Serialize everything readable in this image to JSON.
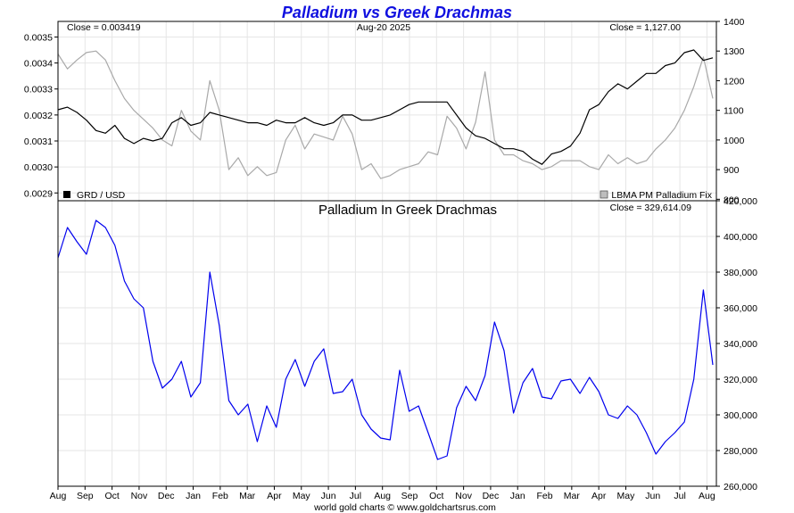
{
  "title": "Palladium vs Greek Drachmas",
  "footer": "world gold charts © www.goldchartsrus.com",
  "colors": {
    "title": "#1010e0",
    "grd": "#000000",
    "palladium_fix": "#a9a9a9",
    "ratio": "#0000ee"
  },
  "chart_data": [
    {
      "type": "line",
      "panel": "top",
      "annotations": {
        "close_left": "Close = 0.003419",
        "date": "Aug-20  2025",
        "close_right": "Close = 1,127.00"
      },
      "left_axis": {
        "ticks": [
          "0.0035",
          "0.0034",
          "0.0033",
          "0.0032",
          "0.0031",
          "0.0030",
          "0.0029"
        ],
        "ylim": [
          0.00287,
          0.00356
        ]
      },
      "right_axis": {
        "ticks": [
          "1400",
          "1300",
          "1200",
          "1100",
          "1000",
          "900",
          "800"
        ],
        "ylim": [
          795,
          1400
        ]
      },
      "legend": {
        "placement": "bottom",
        "left_label": "GRD / USD",
        "right_label": "LBMA PM Palladium Fix"
      },
      "grid": true,
      "series": [
        {
          "name": "GRD / USD",
          "axis": "left",
          "color": "#000000",
          "values": [
            0.00322,
            0.00323,
            0.00321,
            0.00318,
            0.00314,
            0.00313,
            0.00316,
            0.00311,
            0.00309,
            0.00311,
            0.0031,
            0.00311,
            0.00317,
            0.00319,
            0.00316,
            0.00317,
            0.00321,
            0.0032,
            0.00319,
            0.00318,
            0.00317,
            0.00317,
            0.00316,
            0.00318,
            0.00317,
            0.00317,
            0.00319,
            0.00317,
            0.00316,
            0.00317,
            0.0032,
            0.0032,
            0.00318,
            0.00318,
            0.00319,
            0.0032,
            0.00322,
            0.00324,
            0.00325,
            0.00325,
            0.00325,
            0.00325,
            0.0032,
            0.00315,
            0.00312,
            0.00311,
            0.00309,
            0.00307,
            0.00307,
            0.00306,
            0.00303,
            0.00301,
            0.00305,
            0.00306,
            0.00308,
            0.00313,
            0.00322,
            0.00324,
            0.00329,
            0.00332,
            0.0033,
            0.00333,
            0.00336,
            0.00336,
            0.00339,
            0.0034,
            0.00344,
            0.00345,
            0.00341,
            0.00342
          ]
        },
        {
          "name": "LBMA PM Palladium Fix",
          "axis": "right",
          "color": "#a9a9a9",
          "values": [
            1290,
            1240,
            1270,
            1295,
            1300,
            1270,
            1200,
            1140,
            1100,
            1070,
            1040,
            1000,
            980,
            1100,
            1030,
            1000,
            1200,
            1100,
            900,
            940,
            880,
            910,
            880,
            890,
            1000,
            1050,
            970,
            1020,
            1010,
            1000,
            1080,
            1020,
            900,
            920,
            870,
            880,
            900,
            910,
            920,
            960,
            950,
            1080,
            1040,
            970,
            1060,
            1230,
            1000,
            950,
            950,
            930,
            920,
            900,
            910,
            930,
            930,
            930,
            910,
            900,
            950,
            920,
            940,
            920,
            930,
            970,
            1000,
            1040,
            1100,
            1180,
            1280,
            1140
          ]
        },
        {
          "name": "Palladium In Greek Drachmas",
          "axis": "bottom",
          "color": "#0000ee",
          "values": [
            388000,
            405000,
            397000,
            390000,
            409000,
            405000,
            395000,
            375000,
            365000,
            360000,
            330000,
            315000,
            320000,
            330000,
            310000,
            318000,
            380000,
            350000,
            308000,
            300000,
            306000,
            285000,
            305000,
            293000,
            320000,
            331000,
            316000,
            330000,
            337000,
            312000,
            313000,
            320000,
            300000,
            292000,
            287000,
            286000,
            325000,
            302000,
            305000,
            290000,
            275000,
            277000,
            304000,
            316000,
            308000,
            322000,
            352000,
            336000,
            301000,
            318000,
            326000,
            310000,
            309000,
            319000,
            320000,
            312000,
            321000,
            313000,
            300000,
            298000,
            305000,
            300000,
            290000,
            278000,
            285000,
            290000,
            296000,
            320000,
            370000,
            328000
          ]
        }
      ]
    },
    {
      "type": "line",
      "panel": "bottom",
      "title": "Palladium In Greek Drachmas",
      "annotations": {
        "close_right": "Close = 329,614.09"
      },
      "right_axis": {
        "ticks": [
          "420,000",
          "400,000",
          "380,000",
          "360,000",
          "340,000",
          "320,000",
          "300,000",
          "280,000",
          "260,000"
        ],
        "ylim": [
          260000,
          420000
        ]
      },
      "x_ticks": [
        "Aug",
        "Sep",
        "Oct",
        "Nov",
        "Dec",
        "Jan",
        "Feb",
        "Mar",
        "Apr",
        "May",
        "Jun",
        "Jul",
        "Aug",
        "Sep",
        "Oct",
        "Nov",
        "Dec",
        "Jan",
        "Feb",
        "Mar",
        "Apr",
        "May",
        "Jun",
        "Jul",
        "Aug"
      ],
      "grid": true,
      "series_ref": "Palladium In Greek Drachmas"
    }
  ]
}
